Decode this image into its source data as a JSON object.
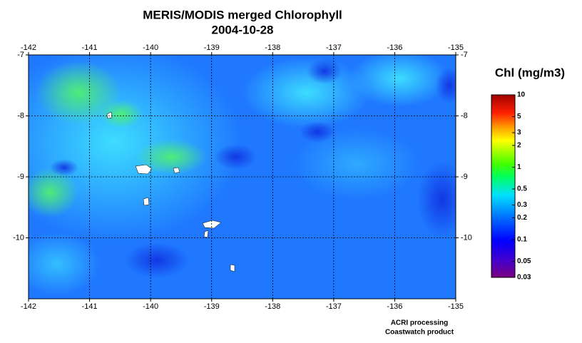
{
  "map": {
    "title": "MERIS/MODIS merged Chlorophyll",
    "date": "2004-10-28",
    "xlim": [
      -142,
      -135
    ],
    "ylim": [
      -11,
      -7
    ],
    "xticks": [
      -142,
      -141,
      -140,
      -139,
      -138,
      -137,
      -136,
      -135
    ],
    "yticks": [
      -10,
      -9,
      -8,
      -7
    ],
    "grid": true,
    "colorbar": {
      "label": "Chl (mg/m3)",
      "log": true,
      "lim": [
        0.03,
        10
      ],
      "ticks": [
        10,
        5,
        3,
        2,
        1,
        0.5,
        0.3,
        0.2,
        0.1,
        0.05,
        0.03
      ]
    },
    "credits": [
      "ACRI processing",
      "Coastwatch product"
    ]
  }
}
